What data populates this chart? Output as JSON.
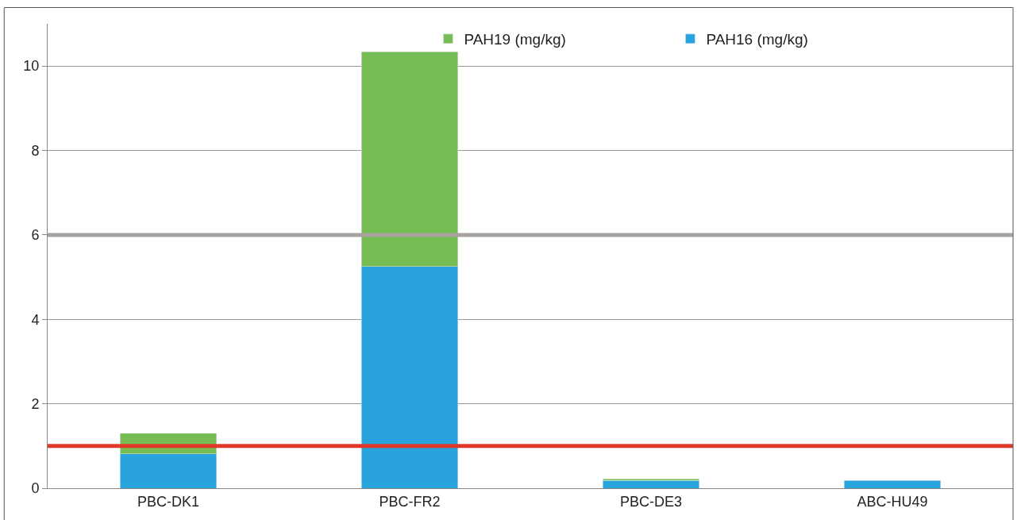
{
  "chart_data": {
    "type": "bar",
    "stacked": true,
    "categories": [
      "PBC-DK1",
      "PBC-FR2",
      "PBC-DE3",
      "ABC-HU49"
    ],
    "series": [
      {
        "name": "PAH16 (mg/kg)",
        "color": "#29a3de",
        "values": [
          0.81,
          5.25,
          0.18,
          0.18
        ]
      },
      {
        "name": "PAH19 (mg/kg)",
        "color": "#77bc54",
        "values": [
          0.49,
          5.09,
          0.04,
          null
        ]
      }
    ],
    "ylim": [
      0,
      11
    ],
    "yticks": [
      0,
      2,
      4,
      6,
      8,
      10
    ],
    "grid": "y",
    "legend": "top right",
    "ref_lines": [
      {
        "axis": "y",
        "value": 6,
        "color": "#a9a39f"
      },
      {
        "axis": "y",
        "value": 1,
        "color": "#e0392b"
      }
    ]
  }
}
